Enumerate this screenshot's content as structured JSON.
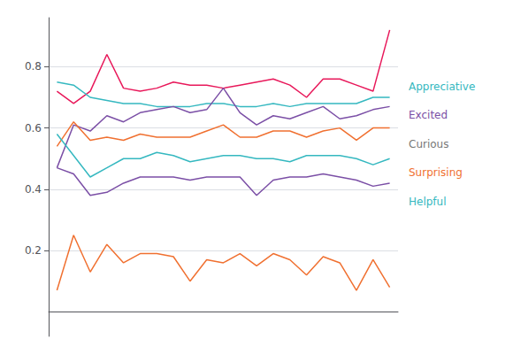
{
  "chart_data": {
    "type": "line",
    "categories": [
      null,
      null,
      null,
      null,
      null,
      null,
      null,
      null,
      null,
      null,
      null,
      null,
      null,
      null,
      null,
      null,
      null,
      null,
      null,
      null,
      null
    ],
    "series": [
      {
        "color": "#e8185a",
        "values": [
          0.72,
          0.68,
          0.72,
          0.84,
          0.73,
          0.72,
          0.73,
          0.75,
          0.74,
          0.74,
          0.73,
          0.74,
          0.75,
          0.76,
          0.74,
          0.7,
          0.76,
          0.76,
          0.74,
          0.72,
          0.92
        ]
      },
      {
        "color": "#35b8c0",
        "values": [
          0.75,
          0.74,
          0.7,
          0.69,
          0.68,
          0.68,
          0.67,
          0.67,
          0.67,
          0.68,
          0.68,
          0.67,
          0.67,
          0.68,
          0.67,
          0.68,
          0.68,
          0.68,
          0.68,
          0.7,
          0.7
        ]
      },
      {
        "color": "#7b4fa6",
        "values": [
          0.47,
          0.61,
          0.59,
          0.64,
          0.62,
          0.65,
          0.66,
          0.67,
          0.65,
          0.66,
          0.73,
          0.65,
          0.61,
          0.64,
          0.63,
          0.65,
          0.67,
          0.63,
          0.64,
          0.66,
          0.67
        ]
      },
      {
        "color": "#f07030",
        "values": [
          0.54,
          0.62,
          0.56,
          0.57,
          0.56,
          0.58,
          0.57,
          0.57,
          0.57,
          0.59,
          0.61,
          0.57,
          0.57,
          0.59,
          0.59,
          0.57,
          0.59,
          0.6,
          0.56,
          0.6,
          0.6
        ]
      },
      {
        "color": "#35b8c0",
        "values": [
          0.58,
          0.51,
          0.44,
          0.47,
          0.5,
          0.5,
          0.52,
          0.51,
          0.49,
          0.5,
          0.51,
          0.51,
          0.5,
          0.5,
          0.49,
          0.51,
          0.51,
          0.51,
          0.5,
          0.48,
          0.5
        ]
      },
      {
        "color": "#7b4fa6",
        "values": [
          0.47,
          0.45,
          0.38,
          0.39,
          0.42,
          0.44,
          0.44,
          0.44,
          0.43,
          0.44,
          0.44,
          0.44,
          0.38,
          0.43,
          0.44,
          0.44,
          0.45,
          0.44,
          0.43,
          0.41,
          0.42
        ]
      },
      {
        "color": "#f07030",
        "values": [
          0.07,
          0.25,
          0.13,
          0.22,
          0.16,
          0.19,
          0.19,
          0.18,
          0.1,
          0.17,
          0.16,
          0.19,
          0.15,
          0.19,
          0.17,
          0.12,
          0.18,
          0.16,
          0.07,
          0.17,
          0.08
        ]
      }
    ],
    "ylim": [
      -0.08,
      0.96
    ],
    "yticks": [
      0.2,
      0.4,
      0.6,
      0.8
    ],
    "grid": true,
    "tick_labels": "y",
    "annotations": [
      {
        "text": "Appreciative",
        "color": "#35b8c0"
      },
      {
        "text": "Excited",
        "color": "#7b4fa6"
      },
      {
        "text": "Curious",
        "color": "#777777"
      },
      {
        "text": "Surprising",
        "color": "#f07030"
      },
      {
        "text": "Helpful",
        "color": "#35b8c0"
      }
    ]
  }
}
